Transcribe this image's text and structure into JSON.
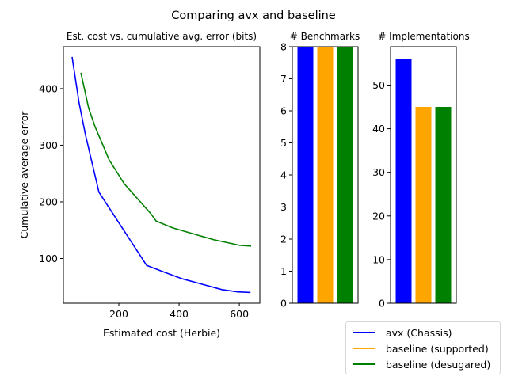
{
  "chart_data": [
    {
      "type": "line",
      "suptitle": "Comparing avx and baseline",
      "title": "Est. cost vs. cumulative avg. error (bits)",
      "xlabel": "Estimated cost (Herbie)",
      "ylabel": "Cumulative average error",
      "xlim": [
        16,
        668
      ],
      "ylim": [
        21,
        474
      ],
      "xticks": [
        200,
        400,
        600
      ],
      "yticks": [
        100,
        200,
        300,
        400
      ],
      "grid": false,
      "series": [
        {
          "name": "avx (Chassis)",
          "color": "#0000ff",
          "x": [
            45,
            68,
            89,
            134,
            292,
            345,
            411,
            542,
            595,
            637
          ],
          "y": [
            456,
            375,
            319,
            217,
            88,
            77,
            64,
            45,
            41,
            40
          ]
        },
        {
          "name": "baseline (desugared)",
          "color": "#008000",
          "x": [
            74,
            100,
            121,
            168,
            218,
            305,
            324,
            379,
            516,
            603,
            639
          ],
          "y": [
            428,
            365,
            333,
            274,
            232,
            180,
            166,
            154,
            133,
            123,
            122
          ]
        }
      ]
    },
    {
      "type": "bar",
      "title": "# Benchmarks",
      "ylim": [
        0,
        8
      ],
      "yticks": [
        0,
        1,
        2,
        3,
        4,
        5,
        6,
        7,
        8
      ],
      "categories": [
        "avx (Chassis)",
        "baseline (supported)",
        "baseline (desugared)"
      ],
      "values": [
        8,
        8,
        8
      ],
      "colors": [
        "#0000ff",
        "#ffa500",
        "#008000"
      ],
      "grid": false
    },
    {
      "type": "bar",
      "title": "# Implementations",
      "ylim": [
        0,
        58.8
      ],
      "yticks": [
        0,
        10,
        20,
        30,
        40,
        50
      ],
      "categories": [
        "avx (Chassis)",
        "baseline (supported)",
        "baseline (desugared)"
      ],
      "values": [
        56,
        45,
        45
      ],
      "colors": [
        "#0000ff",
        "#ffa500",
        "#008000"
      ],
      "grid": false
    }
  ],
  "legend": {
    "placement": "bottom-right",
    "items": [
      {
        "label": "avx (Chassis)",
        "color": "#0000ff"
      },
      {
        "label": "baseline (supported)",
        "color": "#ffa500"
      },
      {
        "label": "baseline (desugared)",
        "color": "#008000"
      }
    ]
  }
}
